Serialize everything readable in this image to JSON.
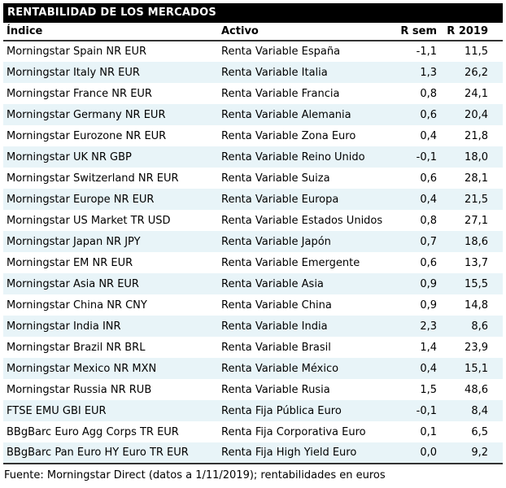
{
  "title": "RENTABILIDAD DE LOS MERCADOS",
  "table": {
    "columns": [
      "Índice",
      "Activo",
      "R sem",
      "R 2019"
    ],
    "rows": [
      [
        "Morningstar Spain NR EUR",
        "Renta Variable España",
        "-1,1",
        "11,5"
      ],
      [
        "Morningstar Italy NR EUR",
        "Renta Variable Italia",
        "1,3",
        "26,2"
      ],
      [
        "Morningstar France NR EUR",
        "Renta Variable Francia",
        "0,8",
        "24,1"
      ],
      [
        "Morningstar Germany NR EUR",
        "Renta Variable Alemania",
        "0,6",
        "20,4"
      ],
      [
        "Morningstar Eurozone NR EUR",
        "Renta Variable Zona Euro",
        "0,4",
        "21,8"
      ],
      [
        "Morningstar UK NR GBP",
        "Renta Variable Reino Unido",
        "-0,1",
        "18,0"
      ],
      [
        "Morningstar Switzerland NR EUR",
        "Renta Variable Suiza",
        "0,6",
        "28,1"
      ],
      [
        "Morningstar Europe NR EUR",
        "Renta Variable Europa",
        "0,4",
        "21,5"
      ],
      [
        "Morningstar US Market TR USD",
        "Renta Variable Estados Unidos",
        "0,8",
        "27,1"
      ],
      [
        "Morningstar Japan NR JPY",
        "Renta Variable Japón",
        "0,7",
        "18,6"
      ],
      [
        "Morningstar EM NR EUR",
        "Renta Variable Emergente",
        "0,6",
        "13,7"
      ],
      [
        "Morningstar Asia NR EUR",
        "Renta Variable Asia",
        "0,9",
        "15,5"
      ],
      [
        "Morningstar China NR CNY",
        "Renta Variable China",
        "0,9",
        "14,8"
      ],
      [
        "Morningstar India INR",
        "Renta Variable India",
        "2,3",
        "8,6"
      ],
      [
        "Morningstar Brazil NR BRL",
        "Renta Variable Brasil",
        "1,4",
        "23,9"
      ],
      [
        "Morningstar Mexico NR MXN",
        "Renta Variable México",
        "0,4",
        "15,1"
      ],
      [
        "Morningstar Russia NR RUB",
        "Renta Variable Rusia",
        "1,5",
        "48,6"
      ],
      [
        "FTSE EMU GBI EUR",
        "Renta Fija Pública Euro",
        "-0,1",
        "8,4"
      ],
      [
        "BBgBarc Euro Agg Corps TR EUR",
        "Renta Fija Corporativa Euro",
        "0,1",
        "6,5"
      ],
      [
        "BBgBarc Pan Euro HY Euro TR EUR",
        "Renta Fija High Yield Euro",
        "0,0",
        "9,2"
      ]
    ]
  },
  "footer": "Fuente: Morningstar Direct (datos a 1/11/2019); rentabilidades en euros",
  "colors": {
    "title_bar_bg": "#000000",
    "title_text": "#ffffff",
    "row_alt_bg": "#e8f4f8",
    "rule": "#333333",
    "text": "#000000"
  }
}
